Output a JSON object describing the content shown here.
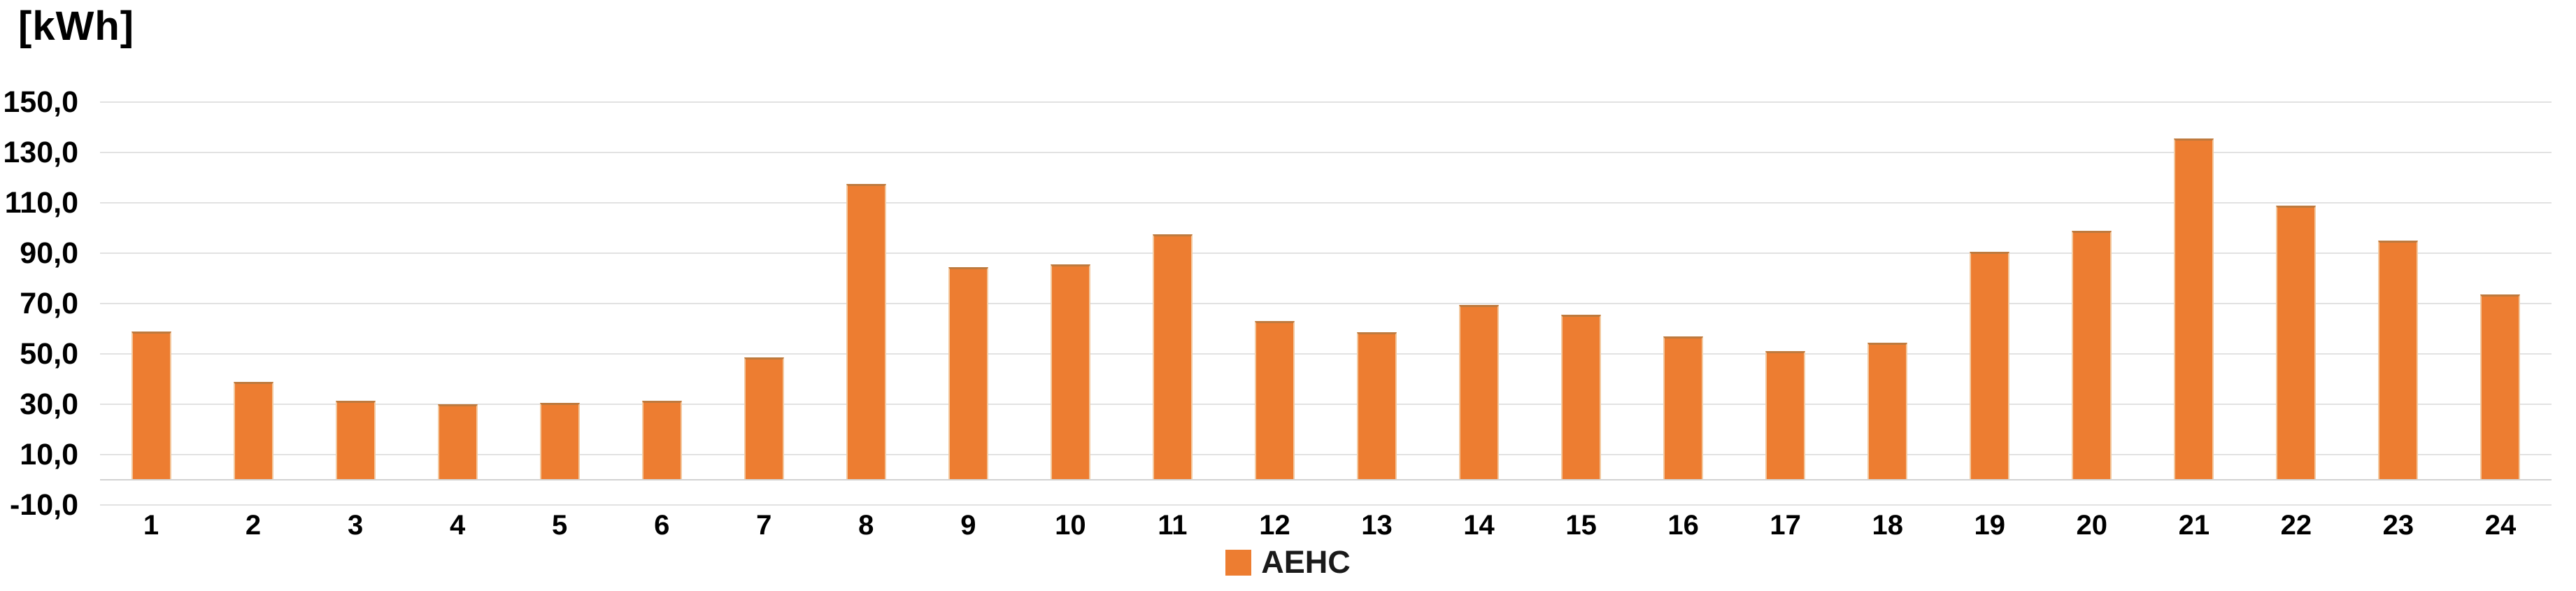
{
  "title": "[kWh]",
  "legend": {
    "label": "AEHC",
    "swatch_color": "#ed7d31"
  },
  "colors": {
    "bar": "#ed7d31",
    "bar_top_edge": "#be7a3e",
    "bar_side_edge": "#f3c9a0",
    "gridline": "#e2e2e2",
    "zero_axis": "#d2d2d2",
    "text": "#000000",
    "background": "#ffffff"
  },
  "chart_data": {
    "type": "bar",
    "title": "[kWh]",
    "xlabel": "",
    "ylabel": "[kWh]",
    "categories": [
      "1",
      "2",
      "3",
      "4",
      "5",
      "6",
      "7",
      "8",
      "9",
      "10",
      "11",
      "12",
      "13",
      "14",
      "15",
      "16",
      "17",
      "18",
      "19",
      "20",
      "21",
      "22",
      "23",
      "24"
    ],
    "series": [
      {
        "name": "AEHC",
        "color": "#ed7d31",
        "values": [
          59,
          39,
          31.5,
          30,
          30.5,
          31.5,
          48.5,
          117.5,
          84.5,
          85.5,
          97.5,
          63,
          58.5,
          69.5,
          65.5,
          57,
          51,
          54.5,
          90.5,
          99,
          135.5,
          109,
          95,
          73.5
        ]
      }
    ],
    "ylim": [
      -10,
      150
    ],
    "ytick_interval": 20,
    "yticks": [
      {
        "value": 150,
        "label": "150,0"
      },
      {
        "value": 130,
        "label": "130,0"
      },
      {
        "value": 110,
        "label": "110,0"
      },
      {
        "value": 90,
        "label": "90,0"
      },
      {
        "value": 70,
        "label": "70,0"
      },
      {
        "value": 50,
        "label": "50,0"
      },
      {
        "value": 30,
        "label": "30,0"
      },
      {
        "value": 10,
        "label": "10,0"
      },
      {
        "value": -10,
        "label": "-10,0"
      }
    ],
    "decimal_separator": ",",
    "grid": true,
    "bars_baseline_value": 0,
    "legend_position": "bottom-center"
  }
}
